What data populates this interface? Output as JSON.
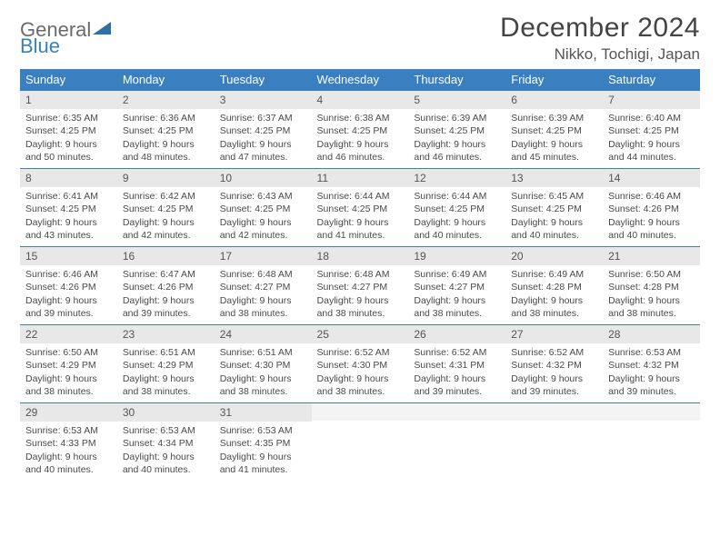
{
  "brand": {
    "part1": "General",
    "part2": "Blue"
  },
  "header": {
    "month_title": "December 2024",
    "location": "Nikko, Tochigi, Japan"
  },
  "colors": {
    "header_bg": "#3a7fbf",
    "header_text": "#ffffff",
    "daynum_bg": "#e8e8e8",
    "row_divider": "#3a7fbf",
    "body_text": "#4a4a4a",
    "page_bg": "#ffffff"
  },
  "weekdays": [
    "Sunday",
    "Monday",
    "Tuesday",
    "Wednesday",
    "Thursday",
    "Friday",
    "Saturday"
  ],
  "weeks": [
    [
      {
        "n": "1",
        "sr": "6:35 AM",
        "ss": "4:25 PM",
        "dl": "9 hours and 50 minutes."
      },
      {
        "n": "2",
        "sr": "6:36 AM",
        "ss": "4:25 PM",
        "dl": "9 hours and 48 minutes."
      },
      {
        "n": "3",
        "sr": "6:37 AM",
        "ss": "4:25 PM",
        "dl": "9 hours and 47 minutes."
      },
      {
        "n": "4",
        "sr": "6:38 AM",
        "ss": "4:25 PM",
        "dl": "9 hours and 46 minutes."
      },
      {
        "n": "5",
        "sr": "6:39 AM",
        "ss": "4:25 PM",
        "dl": "9 hours and 46 minutes."
      },
      {
        "n": "6",
        "sr": "6:39 AM",
        "ss": "4:25 PM",
        "dl": "9 hours and 45 minutes."
      },
      {
        "n": "7",
        "sr": "6:40 AM",
        "ss": "4:25 PM",
        "dl": "9 hours and 44 minutes."
      }
    ],
    [
      {
        "n": "8",
        "sr": "6:41 AM",
        "ss": "4:25 PM",
        "dl": "9 hours and 43 minutes."
      },
      {
        "n": "9",
        "sr": "6:42 AM",
        "ss": "4:25 PM",
        "dl": "9 hours and 42 minutes."
      },
      {
        "n": "10",
        "sr": "6:43 AM",
        "ss": "4:25 PM",
        "dl": "9 hours and 42 minutes."
      },
      {
        "n": "11",
        "sr": "6:44 AM",
        "ss": "4:25 PM",
        "dl": "9 hours and 41 minutes."
      },
      {
        "n": "12",
        "sr": "6:44 AM",
        "ss": "4:25 PM",
        "dl": "9 hours and 40 minutes."
      },
      {
        "n": "13",
        "sr": "6:45 AM",
        "ss": "4:25 PM",
        "dl": "9 hours and 40 minutes."
      },
      {
        "n": "14",
        "sr": "6:46 AM",
        "ss": "4:26 PM",
        "dl": "9 hours and 40 minutes."
      }
    ],
    [
      {
        "n": "15",
        "sr": "6:46 AM",
        "ss": "4:26 PM",
        "dl": "9 hours and 39 minutes."
      },
      {
        "n": "16",
        "sr": "6:47 AM",
        "ss": "4:26 PM",
        "dl": "9 hours and 39 minutes."
      },
      {
        "n": "17",
        "sr": "6:48 AM",
        "ss": "4:27 PM",
        "dl": "9 hours and 38 minutes."
      },
      {
        "n": "18",
        "sr": "6:48 AM",
        "ss": "4:27 PM",
        "dl": "9 hours and 38 minutes."
      },
      {
        "n": "19",
        "sr": "6:49 AM",
        "ss": "4:27 PM",
        "dl": "9 hours and 38 minutes."
      },
      {
        "n": "20",
        "sr": "6:49 AM",
        "ss": "4:28 PM",
        "dl": "9 hours and 38 minutes."
      },
      {
        "n": "21",
        "sr": "6:50 AM",
        "ss": "4:28 PM",
        "dl": "9 hours and 38 minutes."
      }
    ],
    [
      {
        "n": "22",
        "sr": "6:50 AM",
        "ss": "4:29 PM",
        "dl": "9 hours and 38 minutes."
      },
      {
        "n": "23",
        "sr": "6:51 AM",
        "ss": "4:29 PM",
        "dl": "9 hours and 38 minutes."
      },
      {
        "n": "24",
        "sr": "6:51 AM",
        "ss": "4:30 PM",
        "dl": "9 hours and 38 minutes."
      },
      {
        "n": "25",
        "sr": "6:52 AM",
        "ss": "4:30 PM",
        "dl": "9 hours and 38 minutes."
      },
      {
        "n": "26",
        "sr": "6:52 AM",
        "ss": "4:31 PM",
        "dl": "9 hours and 39 minutes."
      },
      {
        "n": "27",
        "sr": "6:52 AM",
        "ss": "4:32 PM",
        "dl": "9 hours and 39 minutes."
      },
      {
        "n": "28",
        "sr": "6:53 AM",
        "ss": "4:32 PM",
        "dl": "9 hours and 39 minutes."
      }
    ],
    [
      {
        "n": "29",
        "sr": "6:53 AM",
        "ss": "4:33 PM",
        "dl": "9 hours and 40 minutes."
      },
      {
        "n": "30",
        "sr": "6:53 AM",
        "ss": "4:34 PM",
        "dl": "9 hours and 40 minutes."
      },
      {
        "n": "31",
        "sr": "6:53 AM",
        "ss": "4:35 PM",
        "dl": "9 hours and 41 minutes."
      },
      null,
      null,
      null,
      null
    ]
  ],
  "labels": {
    "sunrise": "Sunrise:",
    "sunset": "Sunset:",
    "daylight": "Daylight:"
  }
}
